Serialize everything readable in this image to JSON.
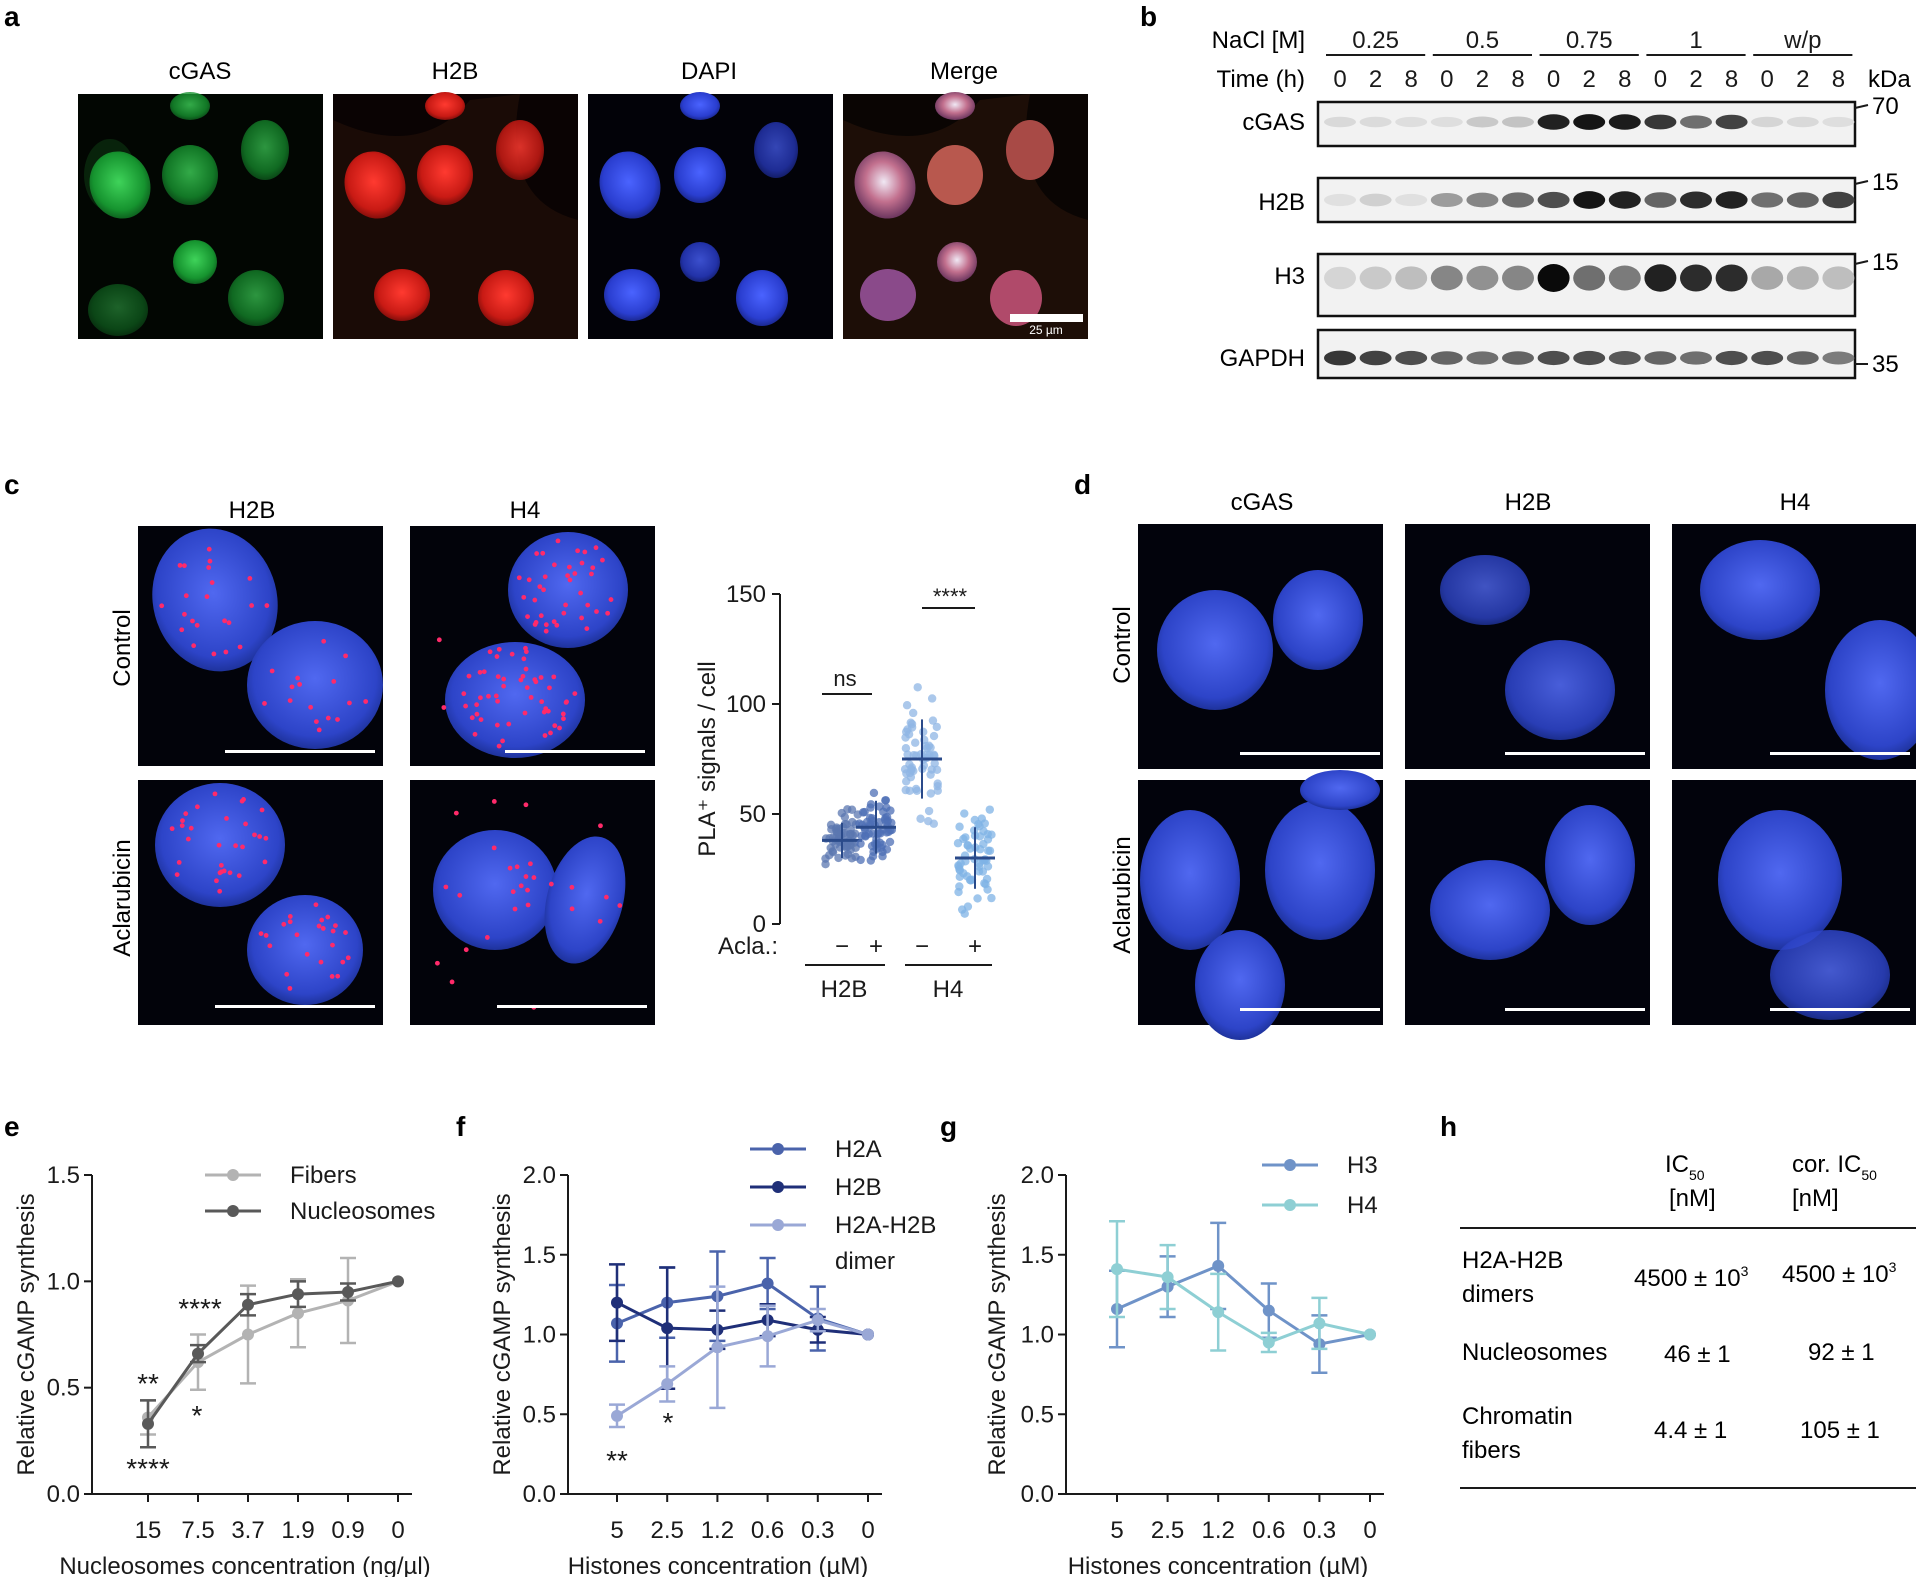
{
  "panel_letters": {
    "a": "a",
    "b": "b",
    "c": "c",
    "d": "d",
    "e": "e",
    "f": "f",
    "g": "g",
    "h": "h"
  },
  "panel_a": {
    "labels": [
      "cGAS",
      "H2B",
      "DAPI",
      "Merge"
    ],
    "scale_bar": "25 µm",
    "colors": {
      "green": "#1fa03c",
      "red": "#e02020",
      "blue": "#2a3ed0"
    }
  },
  "panel_b": {
    "nacl_label": "NaCl [M]",
    "time_label": "Time (h)",
    "groups": [
      "0.25",
      "0.5",
      "0.75",
      "1",
      "w/p"
    ],
    "times": [
      "0",
      "2",
      "8"
    ],
    "blots": [
      "cGAS",
      "H2B",
      "H3",
      "GAPDH"
    ],
    "kda_label": "kDa",
    "markers": [
      "70",
      "15",
      "15",
      "35"
    ],
    "intensities": {
      "cGAS": [
        0.08,
        0.07,
        0.06,
        0.06,
        0.15,
        0.18,
        0.9,
        0.95,
        0.92,
        0.8,
        0.55,
        0.75,
        0.1,
        0.08,
        0.06
      ],
      "H2B": [
        0.05,
        0.12,
        0.05,
        0.35,
        0.45,
        0.55,
        0.7,
        0.95,
        0.9,
        0.6,
        0.85,
        0.9,
        0.55,
        0.6,
        0.75
      ],
      "H3": [
        0.1,
        0.15,
        0.2,
        0.45,
        0.4,
        0.45,
        1.0,
        0.55,
        0.5,
        0.9,
        0.85,
        0.85,
        0.3,
        0.25,
        0.2
      ],
      "GAPDH": [
        0.8,
        0.75,
        0.7,
        0.6,
        0.55,
        0.6,
        0.7,
        0.7,
        0.65,
        0.6,
        0.55,
        0.7,
        0.7,
        0.6,
        0.5
      ]
    }
  },
  "panel_c": {
    "col_labels": [
      "H2B",
      "H4"
    ],
    "row_labels": [
      "Control",
      "Aclarubicin"
    ],
    "chart": {
      "ylabel": "PLA⁺ signals / cell",
      "yticks": [
        "0",
        "50",
        "100",
        "150"
      ],
      "ylim": [
        0,
        150
      ],
      "acla_label": "Acla.:",
      "acla_signs": [
        "−",
        "+",
        "−",
        "+"
      ],
      "group_labels": [
        "H2B",
        "H4"
      ],
      "sig": [
        "ns",
        "****"
      ]
    }
  },
  "panel_d": {
    "col_labels": [
      "cGAS",
      "H2B",
      "H4"
    ],
    "row_labels": [
      "Control",
      "Aclarubicin"
    ]
  },
  "chart_data": [
    {
      "type": "scatter",
      "panel": "c",
      "categories": [
        "− H2B",
        "+ H2B",
        "− H4",
        "+ H4"
      ],
      "means": [
        38,
        44,
        75,
        30
      ],
      "sd": [
        8,
        12,
        18,
        14
      ],
      "ylabel": "PLA⁺ signals / cell",
      "ylim": [
        0,
        150
      ],
      "annotations": [
        "ns",
        "****"
      ]
    },
    {
      "type": "line",
      "panel": "e",
      "x": [
        "15",
        "7.5",
        "3.7",
        "1.9",
        "0.9",
        "0"
      ],
      "series": [
        {
          "name": "Fibers",
          "values": [
            0.36,
            0.62,
            0.75,
            0.85,
            0.91,
            1.0
          ],
          "err": [
            0.08,
            0.13,
            0.23,
            0.16,
            0.2,
            0.0
          ],
          "color": "#b3b3b3"
        },
        {
          "name": "Nucleosomes",
          "values": [
            0.33,
            0.66,
            0.89,
            0.94,
            0.95,
            1.0
          ],
          "err": [
            0.11,
            0.04,
            0.05,
            0.06,
            0.04,
            0.0
          ],
          "color": "#595959"
        }
      ],
      "xlabel": "Nucleosomes concentration (ng/µl)",
      "ylabel": "Relative cGAMP synthesis",
      "ylim": [
        0,
        1.5
      ],
      "yticks": [
        "0.0",
        "0.5",
        "1.0",
        "1.5"
      ],
      "annotations": [
        "**",
        "****",
        "****",
        "*"
      ]
    },
    {
      "type": "line",
      "panel": "f",
      "x": [
        "5",
        "2.5",
        "1.2",
        "0.6",
        "0.3",
        "0"
      ],
      "series": [
        {
          "name": "H2A",
          "values": [
            1.07,
            1.2,
            1.24,
            1.32,
            1.1,
            1.0
          ],
          "err": [
            0.24,
            0.22,
            0.28,
            0.16,
            0.2,
            0.0
          ],
          "color": "#4a63ab"
        },
        {
          "name": "H2B",
          "values": [
            1.2,
            1.04,
            1.03,
            1.09,
            1.03,
            1.0
          ],
          "err": [
            0.24,
            0.38,
            0.12,
            0.1,
            0.08,
            0.0
          ],
          "color": "#1f2f78"
        },
        {
          "name": "H2A-H2B dimer",
          "values": [
            0.49,
            0.69,
            0.92,
            0.99,
            1.09,
            1.0
          ],
          "err": [
            0.07,
            0.11,
            0.38,
            0.19,
            0.07,
            0.0
          ],
          "color": "#9aa8d6"
        }
      ],
      "xlabel": "Histones concentration (µM)",
      "ylabel": "Relative cGAMP synthesis",
      "ylim": [
        0,
        2.0
      ],
      "yticks": [
        "0.0",
        "0.5",
        "1.0",
        "1.5",
        "2.0"
      ],
      "annotations": [
        "**",
        "*"
      ]
    },
    {
      "type": "line",
      "panel": "g",
      "x": [
        "5",
        "2.5",
        "1.2",
        "0.6",
        "0.3",
        "0"
      ],
      "series": [
        {
          "name": "H3",
          "values": [
            1.16,
            1.3,
            1.43,
            1.15,
            0.94,
            1.0
          ],
          "err": [
            0.24,
            0.19,
            0.27,
            0.17,
            0.18,
            0.0
          ],
          "color": "#6f93c8"
        },
        {
          "name": "H4",
          "values": [
            1.41,
            1.36,
            1.14,
            0.95,
            1.07,
            1.0
          ],
          "err": [
            0.3,
            0.2,
            0.24,
            0.06,
            0.16,
            0.0
          ],
          "color": "#8ecfd4"
        }
      ],
      "xlabel": "Histones concentration (µM)",
      "ylabel": "Relative cGAMP synthesis",
      "ylim": [
        0,
        2.0
      ],
      "yticks": [
        "0.0",
        "0.5",
        "1.0",
        "1.5",
        "2.0"
      ]
    },
    {
      "type": "table",
      "panel": "h",
      "columns": [
        "",
        "IC50 [nM]",
        "cor. IC50 [nM]"
      ],
      "rows": [
        [
          "H2A-H2B dimers",
          "4500 ± 10³",
          "4500 ± 10³"
        ],
        [
          "Nucleosomes",
          "46 ± 1",
          "92 ± 1"
        ],
        [
          "Chromatin fibers",
          "4.4 ± 1",
          "105 ± 1"
        ]
      ]
    }
  ],
  "panel_h": {
    "col1_line1": "IC",
    "col1_sub": "50",
    "col1_line2": "[nM]",
    "col2_line1": "cor. IC",
    "col2_sub": "50",
    "col2_line2": "[nM]",
    "rows": [
      {
        "name_l1": "H2A-H2B",
        "name_l2": "dimers",
        "v1": "4500 ± 10",
        "v1_sup": "3",
        "v2": "4500 ± 10",
        "v2_sup": "3"
      },
      {
        "name_l1": "Nucleosomes",
        "name_l2": "",
        "v1": "46 ± 1",
        "v1_sup": "",
        "v2": "92 ± 1",
        "v2_sup": ""
      },
      {
        "name_l1": "Chromatin",
        "name_l2": "fibers",
        "v1": "4.4 ± 1",
        "v1_sup": "",
        "v2": "105 ± 1",
        "v2_sup": ""
      }
    ]
  }
}
